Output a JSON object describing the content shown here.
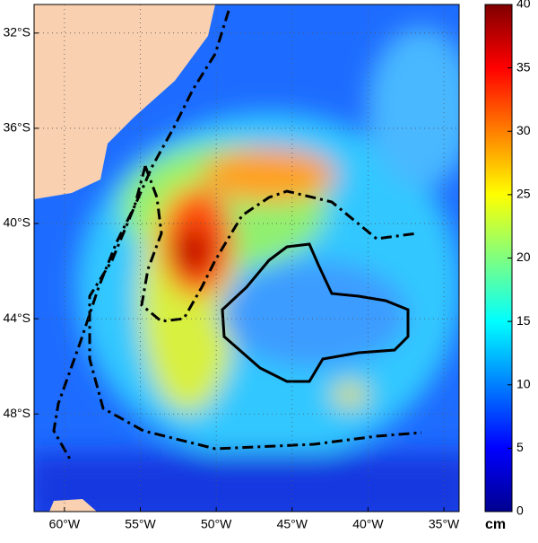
{
  "map": {
    "xlim": [
      -62,
      -34
    ],
    "ylim": [
      -30.8,
      -52.1
    ],
    "lat_ticks": [
      {
        "value": -32,
        "label": "32°S"
      },
      {
        "value": -36,
        "label": "36°S"
      },
      {
        "value": -40,
        "label": "40°S"
      },
      {
        "value": -44,
        "label": "44°S"
      },
      {
        "value": -48,
        "label": "48°S"
      }
    ],
    "lon_ticks": [
      {
        "value": -60,
        "label": "60°W"
      },
      {
        "value": -55,
        "label": "55°W"
      },
      {
        "value": -50,
        "label": "50°W"
      },
      {
        "value": -45,
        "label": "45°W"
      },
      {
        "value": -40,
        "label": "40°W"
      },
      {
        "value": -35,
        "label": "35°W"
      }
    ],
    "colorbar": {
      "lim": [
        0,
        40
      ],
      "ticks": [
        0,
        5,
        10,
        15,
        20,
        25,
        30,
        35,
        40
      ],
      "unit": "cm"
    }
  }
}
